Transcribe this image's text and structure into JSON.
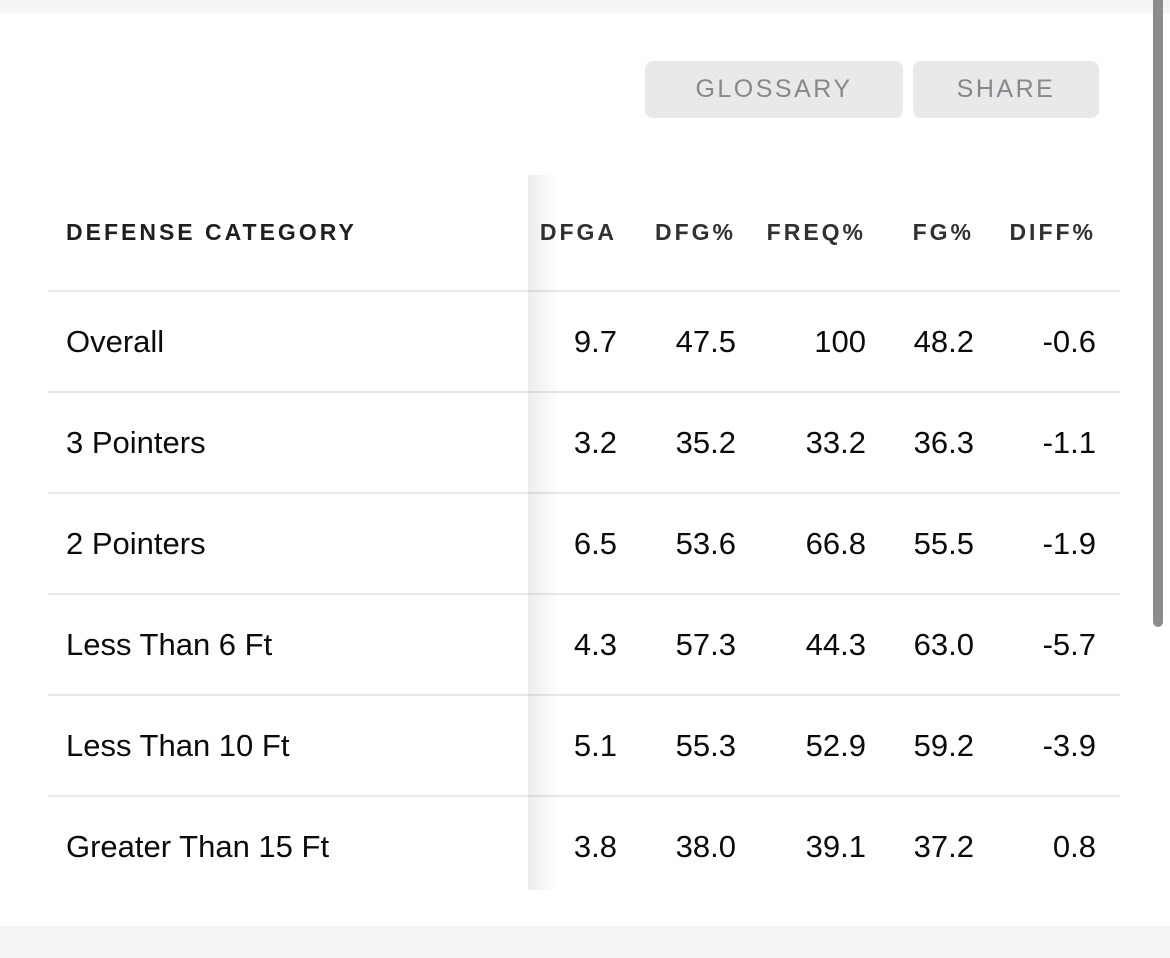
{
  "toolbar": {
    "glossary_label": "GLOSSARY",
    "share_label": "SHARE"
  },
  "table": {
    "columns": [
      "DEFENSE CATEGORY",
      "DFGA",
      "DFG%",
      "FREQ%",
      "FG%",
      "DIFF%"
    ],
    "rows": [
      {
        "cells": [
          "Overall",
          "9.7",
          "47.5",
          "100",
          "48.2",
          "-0.6"
        ]
      },
      {
        "cells": [
          "3 Pointers",
          "3.2",
          "35.2",
          "33.2",
          "36.3",
          "-1.1"
        ]
      },
      {
        "cells": [
          "2 Pointers",
          "6.5",
          "53.6",
          "66.8",
          "55.5",
          "-1.9"
        ]
      },
      {
        "cells": [
          "Less Than 6 Ft",
          "4.3",
          "57.3",
          "44.3",
          "63.0",
          "-5.7"
        ]
      },
      {
        "cells": [
          "Less Than 10 Ft",
          "5.1",
          "55.3",
          "52.9",
          "59.2",
          "-3.9"
        ]
      },
      {
        "cells": [
          "Greater Than 15 Ft",
          "3.8",
          "38.0",
          "39.1",
          "37.2",
          "0.8"
        ]
      }
    ]
  },
  "colors": {
    "button_bg": "#e9e9e9",
    "button_text": "#85898c",
    "divider": "#e8e8e8",
    "band": "#f5f5f5",
    "scrollbar_thumb": "#8c8c8c",
    "header_text": "#1f1f1f",
    "cell_text": "#0b0b0b"
  }
}
